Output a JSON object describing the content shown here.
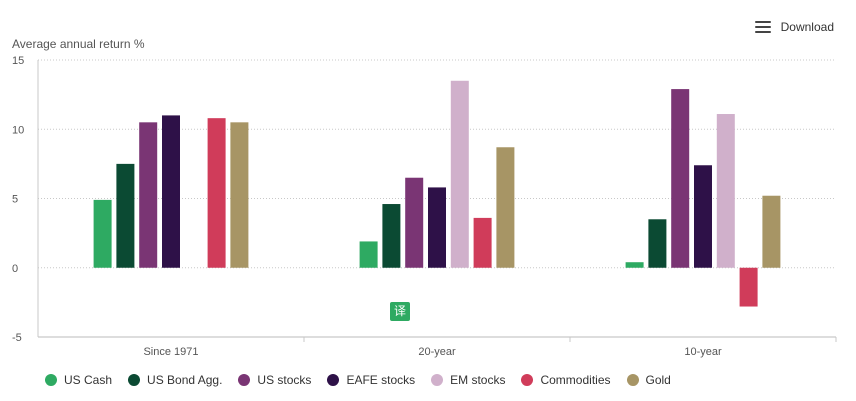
{
  "toolbar": {
    "download_label": "Download",
    "menu_icon": "hamburger-menu-icon"
  },
  "badge": {
    "text": "译"
  },
  "chart_data": {
    "type": "bar",
    "ylabel": "Average annual return %",
    "xlabel": "",
    "ylim": [
      -5,
      15
    ],
    "yticks": [
      -5,
      0,
      5,
      10,
      15
    ],
    "categories": [
      "Since 1971",
      "20-year",
      "10-year"
    ],
    "grid": true,
    "legend_position": "bottom-left",
    "series": [
      {
        "name": "US Cash",
        "color": "#2eaa62",
        "values": [
          4.9,
          1.9,
          0.4
        ]
      },
      {
        "name": "US Bond Agg.",
        "color": "#0b4a33",
        "values": [
          7.5,
          4.6,
          3.5
        ]
      },
      {
        "name": "US stocks",
        "color": "#7a3574",
        "values": [
          10.5,
          6.5,
          12.9
        ]
      },
      {
        "name": "EAFE stocks",
        "color": "#2e1148",
        "values": [
          11.0,
          5.8,
          7.4
        ]
      },
      {
        "name": "EM stocks",
        "color": "#d0b0cb",
        "values": [
          null,
          13.5,
          11.1
        ]
      },
      {
        "name": "Commodities",
        "color": "#d03c5a",
        "values": [
          10.8,
          3.6,
          -2.8
        ]
      },
      {
        "name": "Gold",
        "color": "#a79565",
        "values": [
          10.5,
          8.7,
          5.2
        ]
      }
    ]
  }
}
